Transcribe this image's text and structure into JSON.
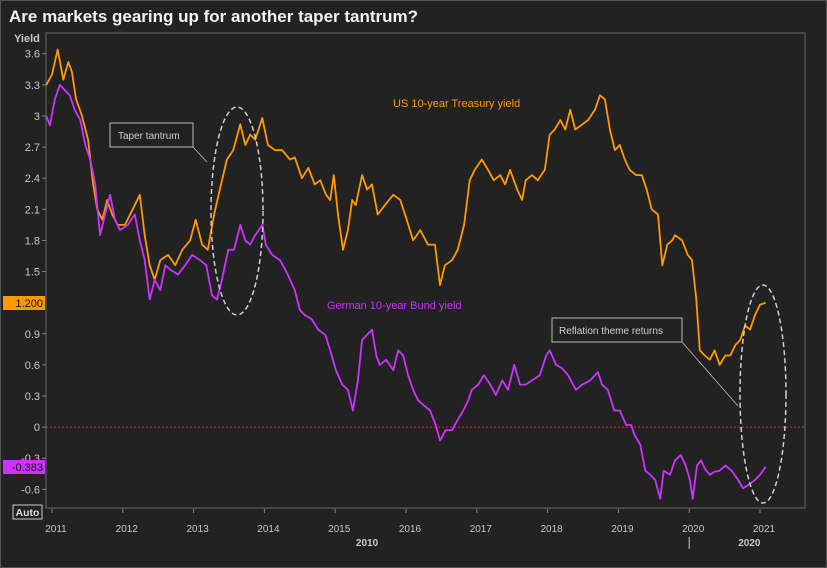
{
  "title": "Are markets gearing up for another taper tantrum?",
  "auto_button": "Auto",
  "chart_data": {
    "type": "line",
    "title": "Are markets gearing up for another taper tantrum?",
    "ylabel": "Yield",
    "xlabel": "",
    "ylim": [
      -0.78,
      3.8
    ],
    "xlim": [
      2010.92,
      2021.64
    ],
    "yticks": [
      "3.6",
      "3.3",
      "3",
      "2.7",
      "2.4",
      "2.1",
      "1.8",
      "1.5",
      "0.9",
      "0.6",
      "0.3",
      "0",
      "-0.3",
      "-0.6"
    ],
    "ytick_values": [
      3.6,
      3.3,
      3,
      2.7,
      2.4,
      2.1,
      1.8,
      1.5,
      0.9,
      0.6,
      0.3,
      0,
      -0.3,
      -0.6
    ],
    "xticks": [
      "2011",
      "2012",
      "2013",
      "2014",
      "2015",
      "2016",
      "2017",
      "2018",
      "2019",
      "2020",
      "2021"
    ],
    "xtick_values": [
      2011,
      2012,
      2013,
      2014,
      2015,
      2016,
      2017,
      2018,
      2019,
      2020,
      2021
    ],
    "decade_labels": [
      {
        "label": "2010",
        "at": 2015.45
      },
      {
        "label": "2020",
        "at": 2020.85
      }
    ],
    "decade_separator": 2020,
    "grid": false,
    "reference_line": {
      "value": 0,
      "color": "#ff2020",
      "style": "dotted"
    },
    "series": [
      {
        "name": "US 10-year Treasury yield",
        "color": "#ff9900",
        "last_value": "1.200",
        "points": [
          [
            2010.92,
            3.3
          ],
          [
            2011.0,
            3.4
          ],
          [
            2011.08,
            3.64
          ],
          [
            2011.16,
            3.35
          ],
          [
            2011.23,
            3.52
          ],
          [
            2011.28,
            3.43
          ],
          [
            2011.34,
            3.16
          ],
          [
            2011.42,
            3.01
          ],
          [
            2011.51,
            2.77
          ],
          [
            2011.58,
            2.34
          ],
          [
            2011.64,
            2.1
          ],
          [
            2011.71,
            2.0
          ],
          [
            2011.78,
            2.19
          ],
          [
            2011.85,
            2.05
          ],
          [
            2011.93,
            1.95
          ],
          [
            2012.03,
            1.95
          ],
          [
            2012.14,
            2.1
          ],
          [
            2012.24,
            2.24
          ],
          [
            2012.31,
            1.85
          ],
          [
            2012.38,
            1.56
          ],
          [
            2012.45,
            1.42
          ],
          [
            2012.53,
            1.61
          ],
          [
            2012.64,
            1.66
          ],
          [
            2012.74,
            1.56
          ],
          [
            2012.84,
            1.71
          ],
          [
            2012.95,
            1.8
          ],
          [
            2013.03,
            2.0
          ],
          [
            2013.12,
            1.76
          ],
          [
            2013.2,
            1.71
          ],
          [
            2013.29,
            2.05
          ],
          [
            2013.37,
            2.29
          ],
          [
            2013.47,
            2.58
          ],
          [
            2013.56,
            2.67
          ],
          [
            2013.66,
            2.92
          ],
          [
            2013.73,
            2.72
          ],
          [
            2013.8,
            2.82
          ],
          [
            2013.87,
            2.77
          ],
          [
            2013.97,
            2.98
          ],
          [
            2014.05,
            2.72
          ],
          [
            2014.15,
            2.67
          ],
          [
            2014.25,
            2.67
          ],
          [
            2014.36,
            2.58
          ],
          [
            2014.43,
            2.6
          ],
          [
            2014.53,
            2.4
          ],
          [
            2014.62,
            2.5
          ],
          [
            2014.71,
            2.34
          ],
          [
            2014.79,
            2.38
          ],
          [
            2014.87,
            2.24
          ],
          [
            2014.93,
            2.19
          ],
          [
            2014.98,
            2.43
          ],
          [
            2015.04,
            2.05
          ],
          [
            2015.11,
            1.71
          ],
          [
            2015.18,
            1.9
          ],
          [
            2015.24,
            2.19
          ],
          [
            2015.29,
            2.14
          ],
          [
            2015.38,
            2.43
          ],
          [
            2015.45,
            2.29
          ],
          [
            2015.52,
            2.34
          ],
          [
            2015.6,
            2.05
          ],
          [
            2015.7,
            2.14
          ],
          [
            2015.82,
            2.24
          ],
          [
            2015.92,
            2.19
          ],
          [
            2016.01,
            2.0
          ],
          [
            2016.1,
            1.8
          ],
          [
            2016.2,
            1.9
          ],
          [
            2016.31,
            1.76
          ],
          [
            2016.41,
            1.76
          ],
          [
            2016.48,
            1.37
          ],
          [
            2016.55,
            1.56
          ],
          [
            2016.65,
            1.61
          ],
          [
            2016.73,
            1.71
          ],
          [
            2016.82,
            1.95
          ],
          [
            2016.9,
            2.38
          ],
          [
            2016.97,
            2.48
          ],
          [
            2017.07,
            2.58
          ],
          [
            2017.16,
            2.48
          ],
          [
            2017.24,
            2.38
          ],
          [
            2017.33,
            2.43
          ],
          [
            2017.4,
            2.34
          ],
          [
            2017.47,
            2.48
          ],
          [
            2017.57,
            2.29
          ],
          [
            2017.64,
            2.19
          ],
          [
            2017.69,
            2.38
          ],
          [
            2017.78,
            2.43
          ],
          [
            2017.86,
            2.38
          ],
          [
            2017.96,
            2.48
          ],
          [
            2018.03,
            2.82
          ],
          [
            2018.1,
            2.87
          ],
          [
            2018.18,
            2.96
          ],
          [
            2018.25,
            2.87
          ],
          [
            2018.32,
            3.06
          ],
          [
            2018.39,
            2.87
          ],
          [
            2018.49,
            2.92
          ],
          [
            2018.57,
            2.96
          ],
          [
            2018.67,
            3.06
          ],
          [
            2018.74,
            3.2
          ],
          [
            2018.81,
            3.16
          ],
          [
            2018.88,
            2.87
          ],
          [
            2018.95,
            2.67
          ],
          [
            2019.02,
            2.72
          ],
          [
            2019.09,
            2.58
          ],
          [
            2019.16,
            2.48
          ],
          [
            2019.25,
            2.43
          ],
          [
            2019.33,
            2.43
          ],
          [
            2019.4,
            2.29
          ],
          [
            2019.47,
            2.1
          ],
          [
            2019.56,
            2.05
          ],
          [
            2019.62,
            1.56
          ],
          [
            2019.69,
            1.76
          ],
          [
            2019.76,
            1.8
          ],
          [
            2019.8,
            1.85
          ],
          [
            2019.9,
            1.8
          ],
          [
            2019.98,
            1.66
          ],
          [
            2020.04,
            1.61
          ],
          [
            2020.1,
            1.23
          ],
          [
            2020.15,
            0.74
          ],
          [
            2020.22,
            0.69
          ],
          [
            2020.29,
            0.65
          ],
          [
            2020.36,
            0.74
          ],
          [
            2020.43,
            0.6
          ],
          [
            2020.51,
            0.69
          ],
          [
            2020.58,
            0.69
          ],
          [
            2020.65,
            0.79
          ],
          [
            2020.72,
            0.84
          ],
          [
            2020.79,
            0.98
          ],
          [
            2020.86,
            0.94
          ],
          [
            2020.93,
            1.08
          ],
          [
            2021.0,
            1.18
          ],
          [
            2021.08,
            1.2
          ]
        ]
      },
      {
        "name": "German 10-year Bund yield",
        "color": "#cc33ff",
        "last_value": "-0.383",
        "points": [
          [
            2010.92,
            3.0
          ],
          [
            2010.97,
            2.91
          ],
          [
            2011.04,
            3.16
          ],
          [
            2011.11,
            3.3
          ],
          [
            2011.18,
            3.25
          ],
          [
            2011.25,
            3.2
          ],
          [
            2011.32,
            3.06
          ],
          [
            2011.4,
            2.96
          ],
          [
            2011.47,
            2.72
          ],
          [
            2011.54,
            2.58
          ],
          [
            2011.61,
            2.34
          ],
          [
            2011.68,
            1.85
          ],
          [
            2011.75,
            2.05
          ],
          [
            2011.82,
            2.24
          ],
          [
            2011.89,
            2.0
          ],
          [
            2011.96,
            1.9
          ],
          [
            2012.07,
            1.95
          ],
          [
            2012.17,
            2.05
          ],
          [
            2012.24,
            1.8
          ],
          [
            2012.31,
            1.61
          ],
          [
            2012.38,
            1.23
          ],
          [
            2012.45,
            1.42
          ],
          [
            2012.53,
            1.32
          ],
          [
            2012.6,
            1.56
          ],
          [
            2012.67,
            1.52
          ],
          [
            2012.78,
            1.47
          ],
          [
            2012.88,
            1.56
          ],
          [
            2012.98,
            1.66
          ],
          [
            2013.09,
            1.61
          ],
          [
            2013.18,
            1.56
          ],
          [
            2013.26,
            1.27
          ],
          [
            2013.33,
            1.23
          ],
          [
            2013.4,
            1.42
          ],
          [
            2013.49,
            1.71
          ],
          [
            2013.57,
            1.71
          ],
          [
            2013.66,
            1.95
          ],
          [
            2013.73,
            1.8
          ],
          [
            2013.8,
            1.76
          ],
          [
            2013.87,
            1.85
          ],
          [
            2013.97,
            1.95
          ],
          [
            2014.02,
            1.76
          ],
          [
            2014.11,
            1.66
          ],
          [
            2014.22,
            1.61
          ],
          [
            2014.33,
            1.47
          ],
          [
            2014.43,
            1.32
          ],
          [
            2014.5,
            1.13
          ],
          [
            2014.57,
            1.08
          ],
          [
            2014.67,
            1.04
          ],
          [
            2014.76,
            0.94
          ],
          [
            2014.86,
            0.89
          ],
          [
            2014.93,
            0.74
          ],
          [
            2015.01,
            0.55
          ],
          [
            2015.1,
            0.41
          ],
          [
            2015.18,
            0.36
          ],
          [
            2015.25,
            0.16
          ],
          [
            2015.32,
            0.45
          ],
          [
            2015.38,
            0.84
          ],
          [
            2015.45,
            0.89
          ],
          [
            2015.52,
            0.94
          ],
          [
            2015.58,
            0.69
          ],
          [
            2015.63,
            0.6
          ],
          [
            2015.72,
            0.65
          ],
          [
            2015.82,
            0.55
          ],
          [
            2015.89,
            0.74
          ],
          [
            2015.96,
            0.69
          ],
          [
            2016.03,
            0.5
          ],
          [
            2016.1,
            0.36
          ],
          [
            2016.17,
            0.26
          ],
          [
            2016.25,
            0.21
          ],
          [
            2016.34,
            0.16
          ],
          [
            2016.42,
            0.02
          ],
          [
            2016.48,
            -0.13
          ],
          [
            2016.56,
            -0.03
          ],
          [
            2016.65,
            -0.03
          ],
          [
            2016.73,
            0.07
          ],
          [
            2016.81,
            0.16
          ],
          [
            2016.88,
            0.26
          ],
          [
            2016.93,
            0.36
          ],
          [
            2017.02,
            0.41
          ],
          [
            2017.1,
            0.5
          ],
          [
            2017.19,
            0.41
          ],
          [
            2017.27,
            0.31
          ],
          [
            2017.36,
            0.45
          ],
          [
            2017.44,
            0.36
          ],
          [
            2017.53,
            0.6
          ],
          [
            2017.61,
            0.41
          ],
          [
            2017.69,
            0.41
          ],
          [
            2017.78,
            0.45
          ],
          [
            2017.89,
            0.5
          ],
          [
            2017.98,
            0.69
          ],
          [
            2018.03,
            0.74
          ],
          [
            2018.12,
            0.6
          ],
          [
            2018.2,
            0.57
          ],
          [
            2018.29,
            0.5
          ],
          [
            2018.4,
            0.36
          ],
          [
            2018.49,
            0.41
          ],
          [
            2018.6,
            0.45
          ],
          [
            2018.71,
            0.53
          ],
          [
            2018.77,
            0.41
          ],
          [
            2018.85,
            0.36
          ],
          [
            2018.94,
            0.16
          ],
          [
            2019.02,
            0.16
          ],
          [
            2019.11,
            0.02
          ],
          [
            2019.18,
            0.02
          ],
          [
            2019.23,
            -0.08
          ],
          [
            2019.31,
            -0.17
          ],
          [
            2019.38,
            -0.42
          ],
          [
            2019.45,
            -0.46
          ],
          [
            2019.52,
            -0.51
          ],
          [
            2019.59,
            -0.69
          ],
          [
            2019.64,
            -0.42
          ],
          [
            2019.73,
            -0.46
          ],
          [
            2019.8,
            -0.32
          ],
          [
            2019.88,
            -0.27
          ],
          [
            2019.95,
            -0.37
          ],
          [
            2020.01,
            -0.51
          ],
          [
            2020.05,
            -0.69
          ],
          [
            2020.11,
            -0.37
          ],
          [
            2020.17,
            -0.32
          ],
          [
            2020.22,
            -0.4
          ],
          [
            2020.29,
            -0.46
          ],
          [
            2020.36,
            -0.43
          ],
          [
            2020.43,
            -0.42
          ],
          [
            2020.51,
            -0.37
          ],
          [
            2020.6,
            -0.42
          ],
          [
            2020.69,
            -0.51
          ],
          [
            2020.76,
            -0.59
          ],
          [
            2020.83,
            -0.56
          ],
          [
            2020.93,
            -0.51
          ],
          [
            2021.0,
            -0.46
          ],
          [
            2021.08,
            -0.383
          ]
        ]
      }
    ],
    "annotations": [
      {
        "text": "Taper tantrum",
        "target": [
          2013.55,
          1.8
        ]
      },
      {
        "text": "Reflation theme returns",
        "target": [
          2021.0,
          0.25
        ]
      }
    ]
  }
}
